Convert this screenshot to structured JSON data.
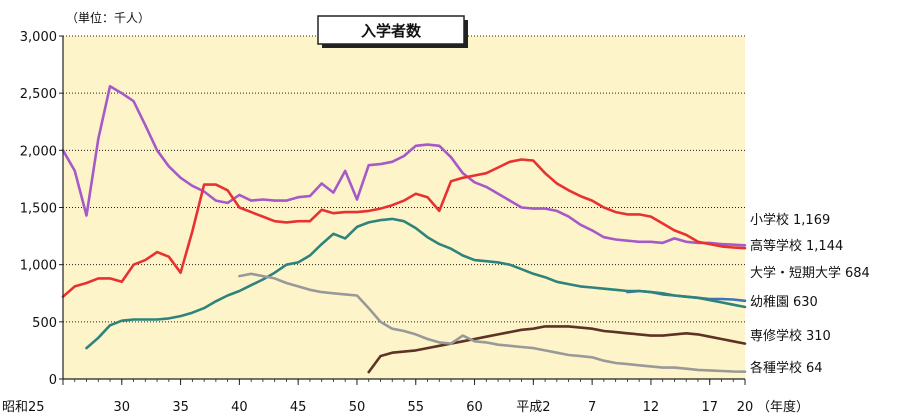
{
  "chart_data": {
    "type": "line",
    "title": "入学者数",
    "unit_label": "（単位：千人）",
    "xlabel": "（年度）",
    "ylabel": "",
    "ylim": [
      0,
      3000
    ],
    "xlim": [
      1950,
      2008
    ],
    "y_ticks": [
      {
        "value": 0,
        "label": "0"
      },
      {
        "value": 500,
        "label": "500"
      },
      {
        "value": 1000,
        "label": "1,000"
      },
      {
        "value": 1500,
        "label": "1,500"
      },
      {
        "value": 2000,
        "label": "2,000"
      },
      {
        "value": 2500,
        "label": "2,500"
      },
      {
        "value": 3000,
        "label": "3,000"
      }
    ],
    "x_ticks": [
      {
        "value": 1950,
        "label": "昭和25"
      },
      {
        "value": 1955,
        "label": "30"
      },
      {
        "value": 1960,
        "label": "35"
      },
      {
        "value": 1965,
        "label": "40"
      },
      {
        "value": 1970,
        "label": "45"
      },
      {
        "value": 1975,
        "label": "50"
      },
      {
        "value": 1980,
        "label": "55"
      },
      {
        "value": 1985,
        "label": "60"
      },
      {
        "value": 1990,
        "label": "平成2"
      },
      {
        "value": 1995,
        "label": "7"
      },
      {
        "value": 2000,
        "label": "12"
      },
      {
        "value": 2005,
        "label": "17"
      },
      {
        "value": 2008,
        "label": "20"
      }
    ],
    "grid": "horizontal",
    "background_color": "#fdf5c9",
    "series": [
      {
        "name": "小学校",
        "value_label": "1,169",
        "color": "#a659c8",
        "x": [
          1950,
          1951,
          1952,
          1953,
          1954,
          1955,
          1956,
          1957,
          1958,
          1959,
          1960,
          1961,
          1962,
          1963,
          1964,
          1965,
          1966,
          1967,
          1968,
          1969,
          1970,
          1971,
          1972,
          1973,
          1974,
          1975,
          1976,
          1977,
          1978,
          1979,
          1980,
          1981,
          1982,
          1983,
          1984,
          1985,
          1986,
          1987,
          1988,
          1989,
          1990,
          1991,
          1992,
          1993,
          1994,
          1995,
          1996,
          1997,
          1998,
          1999,
          2000,
          2001,
          2002,
          2003,
          2004,
          2005,
          2006,
          2007,
          2008
        ],
        "y": [
          2000,
          1820,
          1430,
          2100,
          2560,
          2500,
          2430,
          2220,
          2000,
          1860,
          1760,
          1690,
          1640,
          1560,
          1540,
          1610,
          1560,
          1570,
          1560,
          1560,
          1590,
          1600,
          1710,
          1630,
          1820,
          1570,
          1870,
          1880,
          1900,
          1950,
          2040,
          2050,
          2040,
          1940,
          1800,
          1720,
          1680,
          1620,
          1560,
          1500,
          1490,
          1490,
          1470,
          1420,
          1350,
          1300,
          1240,
          1220,
          1210,
          1200,
          1200,
          1190,
          1230,
          1200,
          1190,
          1190,
          1180,
          1175,
          1169
        ]
      },
      {
        "name": "高等学校",
        "value_label": "1,144",
        "color": "#e83232",
        "x": [
          1950,
          1951,
          1952,
          1953,
          1954,
          1955,
          1956,
          1957,
          1958,
          1959,
          1960,
          1961,
          1962,
          1963,
          1964,
          1965,
          1966,
          1967,
          1968,
          1969,
          1970,
          1971,
          1972,
          1973,
          1974,
          1975,
          1976,
          1977,
          1978,
          1979,
          1980,
          1981,
          1982,
          1983,
          1984,
          1985,
          1986,
          1987,
          1988,
          1989,
          1990,
          1991,
          1992,
          1993,
          1994,
          1995,
          1996,
          1997,
          1998,
          1999,
          2000,
          2001,
          2002,
          2003,
          2004,
          2005,
          2006,
          2007,
          2008
        ],
        "y": [
          720,
          810,
          840,
          880,
          880,
          850,
          1000,
          1040,
          1110,
          1070,
          930,
          1290,
          1700,
          1700,
          1650,
          1500,
          1460,
          1420,
          1380,
          1370,
          1380,
          1380,
          1480,
          1450,
          1460,
          1460,
          1470,
          1490,
          1520,
          1560,
          1620,
          1590,
          1470,
          1730,
          1760,
          1780,
          1800,
          1850,
          1900,
          1920,
          1910,
          1800,
          1710,
          1650,
          1600,
          1560,
          1500,
          1460,
          1440,
          1440,
          1420,
          1360,
          1300,
          1260,
          1200,
          1180,
          1160,
          1150,
          1144
        ]
      },
      {
        "name": "大学・短期大学",
        "value_label": "684",
        "color": "#3f73b5",
        "x": [
          1998,
          1999,
          2000,
          2001,
          2002,
          2003,
          2004,
          2005,
          2006,
          2007,
          2008
        ],
        "y": [
          760,
          770,
          760,
          740,
          730,
          720,
          710,
          700,
          700,
          695,
          684
        ]
      },
      {
        "name": "幼稚園",
        "value_label": "630",
        "color": "#2e837c",
        "x": [
          1952,
          1953,
          1954,
          1955,
          1956,
          1957,
          1958,
          1959,
          1960,
          1961,
          1962,
          1963,
          1964,
          1965,
          1966,
          1967,
          1968,
          1969,
          1970,
          1971,
          1972,
          1973,
          1974,
          1975,
          1976,
          1977,
          1978,
          1979,
          1980,
          1981,
          1982,
          1983,
          1984,
          1985,
          1986,
          1987,
          1988,
          1989,
          1990,
          1991,
          1992,
          1993,
          1994,
          1995,
          1996,
          1997,
          1998,
          1999,
          2000,
          2001,
          2002,
          2003,
          2004,
          2005,
          2006,
          2007,
          2008
        ],
        "y": [
          270,
          360,
          470,
          510,
          520,
          520,
          520,
          530,
          550,
          580,
          620,
          680,
          730,
          770,
          820,
          870,
          930,
          1000,
          1020,
          1080,
          1180,
          1270,
          1230,
          1330,
          1370,
          1390,
          1400,
          1380,
          1320,
          1240,
          1180,
          1140,
          1080,
          1040,
          1030,
          1020,
          1000,
          960,
          920,
          890,
          850,
          830,
          810,
          800,
          790,
          780,
          770,
          770,
          760,
          750,
          730,
          720,
          710,
          690,
          670,
          650,
          630
        ]
      },
      {
        "name": "専修学校",
        "value_label": "310",
        "color": "#5e3224",
        "x": [
          1976,
          1977,
          1978,
          1979,
          1980,
          1981,
          1982,
          1983,
          1984,
          1985,
          1986,
          1987,
          1988,
          1989,
          1990,
          1991,
          1992,
          1993,
          1994,
          1995,
          1996,
          1997,
          1998,
          1999,
          2000,
          2001,
          2002,
          2003,
          2004,
          2005,
          2006,
          2007,
          2008
        ],
        "y": [
          60,
          200,
          230,
          240,
          250,
          270,
          290,
          310,
          330,
          350,
          370,
          390,
          410,
          430,
          440,
          460,
          460,
          460,
          450,
          440,
          420,
          410,
          400,
          390,
          380,
          380,
          390,
          400,
          390,
          370,
          350,
          330,
          310
        ]
      },
      {
        "name": "各種学校",
        "value_label": "64",
        "color": "#999999",
        "x": [
          1965,
          1966,
          1967,
          1968,
          1969,
          1970,
          1971,
          1972,
          1973,
          1974,
          1975,
          1976,
          1977,
          1978,
          1979,
          1980,
          1981,
          1982,
          1983,
          1984,
          1985,
          1986,
          1987,
          1988,
          1989,
          1990,
          1991,
          1992,
          1993,
          1994,
          1995,
          1996,
          1997,
          1998,
          1999,
          2000,
          2001,
          2002,
          2003,
          2004,
          2005,
          2006,
          2007,
          2008
        ],
        "y": [
          900,
          920,
          900,
          880,
          840,
          810,
          780,
          760,
          750,
          740,
          730,
          620,
          500,
          440,
          420,
          390,
          350,
          320,
          310,
          380,
          330,
          320,
          300,
          290,
          280,
          270,
          250,
          230,
          210,
          200,
          190,
          160,
          140,
          130,
          120,
          110,
          100,
          100,
          90,
          80,
          75,
          70,
          66,
          64
        ]
      }
    ]
  }
}
